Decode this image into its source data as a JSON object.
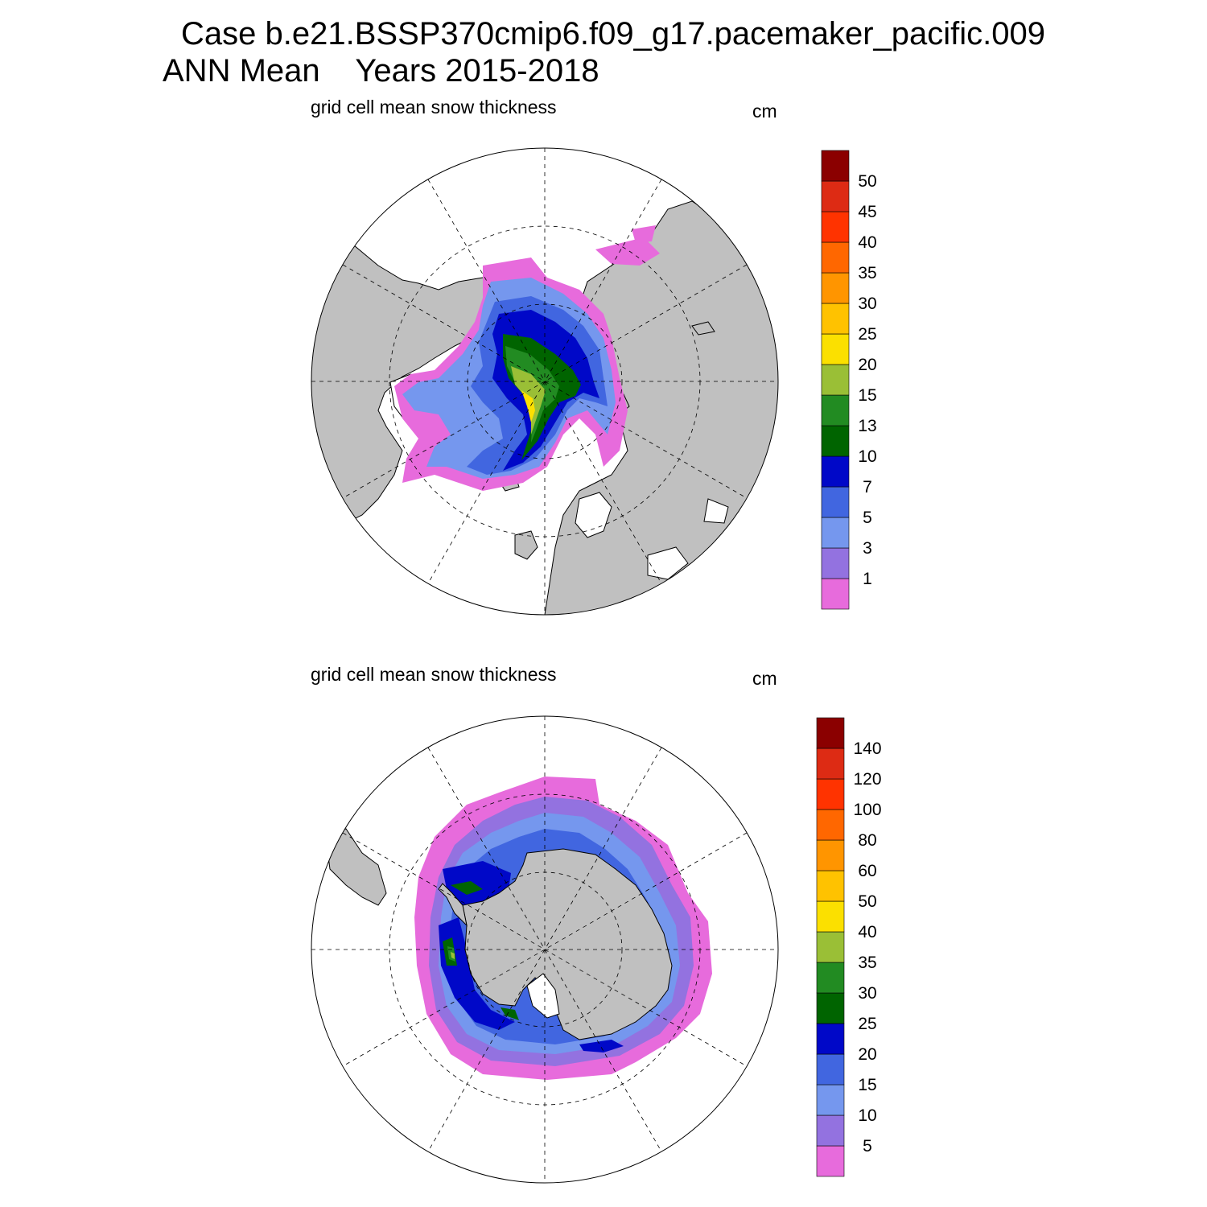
{
  "title": {
    "line1": "Case b.e21.BSSP370cmip6.f09_g17.pacemaker_pacific.009",
    "line2": "ANN Mean    Years 2015-2018"
  },
  "colors": {
    "land": "#c0c0c0",
    "ocean": "#ffffff",
    "palette": [
      "#e76bdc",
      "#9372e0",
      "#7597ee",
      "#4166e0",
      "#0008c8",
      "#006400",
      "#228b22",
      "#9abf36",
      "#fbe000",
      "#ffc200",
      "#ff9500",
      "#ff6700",
      "#ff3300",
      "#dd2b14",
      "#8b0000"
    ]
  },
  "panels": [
    {
      "id": "north",
      "label": "grid cell mean snow thickness",
      "units": "cm",
      "colorbar_levels": [
        "1",
        "3",
        "5",
        "7",
        "10",
        "13",
        "15",
        "20",
        "25",
        "30",
        "35",
        "40",
        "45",
        "50"
      ]
    },
    {
      "id": "south",
      "label": "grid cell mean snow thickness",
      "units": "cm",
      "colorbar_levels": [
        "5",
        "10",
        "15",
        "20",
        "25",
        "30",
        "35",
        "40",
        "50",
        "60",
        "80",
        "100",
        "120",
        "140"
      ]
    }
  ]
}
